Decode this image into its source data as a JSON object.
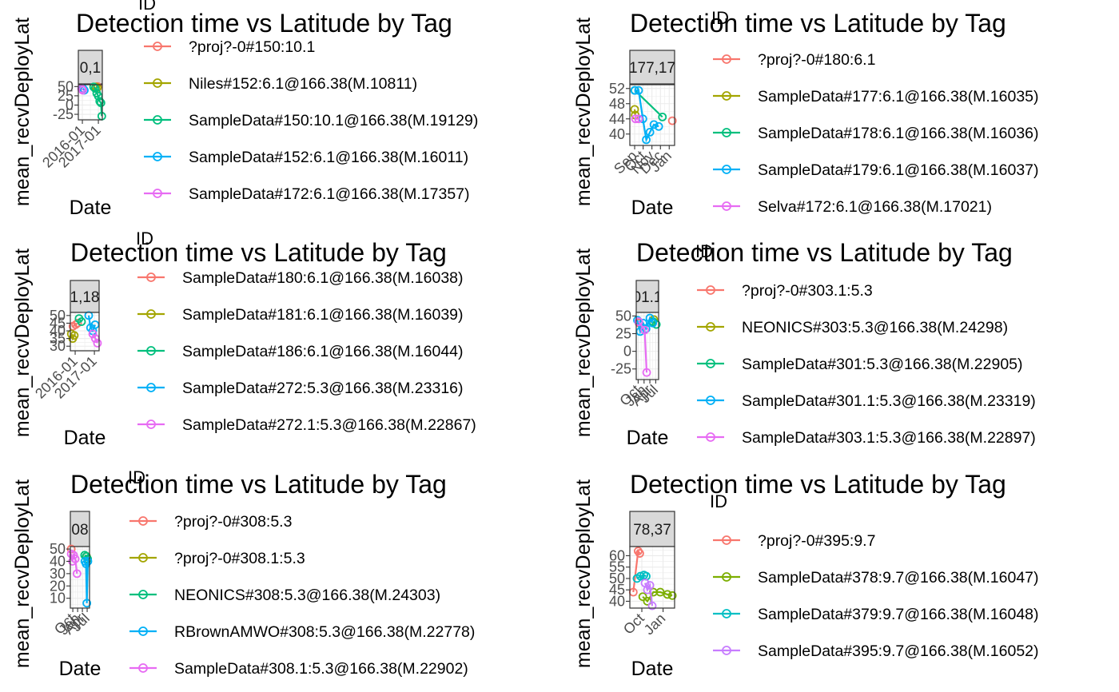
{
  "chart_data": [
    {
      "type": "line",
      "title": "Detection time vs Latitude by Tag",
      "xlabel": "Date",
      "ylabel": "mean_recvDeployLat",
      "legend_title": "ID",
      "legend_position": "right",
      "grid": true,
      "facet_strip": "0,1",
      "xlim": [
        "2015-10-01",
        "2017-04-01"
      ],
      "x_ticks": [
        "2016-01",
        "2017-01"
      ],
      "ylim": [
        -40,
        55
      ],
      "y_ticks": [
        -25,
        0,
        25,
        50
      ],
      "series": [
        {
          "name": "?proj?-0#150:10.1",
          "color": "#F8766D",
          "points": [
            [
              "2016-12-15",
              50
            ]
          ]
        },
        {
          "name": "Niles#152:6.1@166.38(M.10811)",
          "color": "#A3A500",
          "points": [
            [
              "2016-11-01",
              49
            ],
            [
              "2016-12-10",
              47
            ]
          ]
        },
        {
          "name": "SampleData#150:10.1@166.38(M.19129)",
          "color": "#00BF7D",
          "points": [
            [
              "2016-09-15",
              49
            ],
            [
              "2016-10-20",
              45
            ],
            [
              "2016-11-25",
              32
            ],
            [
              "2017-01-01",
              24
            ],
            [
              "2017-02-01",
              10
            ],
            [
              "2017-03-01",
              6
            ],
            [
              "2017-03-20",
              -30
            ]
          ]
        },
        {
          "name": "SampleData#152:6.1@166.38(M.16011)",
          "color": "#00B0F6",
          "points": [
            [
              "2016-01-15",
              45
            ],
            [
              "2016-02-15",
              40
            ]
          ]
        },
        {
          "name": "SampleData#172:6.1@166.38(M.17357)",
          "color": "#E76BF3",
          "points": [
            [
              "2015-12-15",
              44
            ],
            [
              "2016-01-10",
              40
            ]
          ]
        }
      ]
    },
    {
      "type": "line",
      "title": "Detection time vs Latitude by Tag",
      "xlabel": "Date",
      "ylabel": "mean_recvDeployLat",
      "legend_title": "ID",
      "legend_position": "right",
      "grid": true,
      "facet_strip": "177,17",
      "xlim": [
        "2016-08-15",
        "2017-01-20"
      ],
      "x_ticks": [
        "Sep",
        "Oct",
        "Nov",
        "Dec",
        "Jan"
      ],
      "ylim": [
        37,
        53
      ],
      "y_ticks": [
        40,
        44,
        48,
        52
      ],
      "series": [
        {
          "name": "?proj?-0#180:6.1",
          "color": "#F8766D",
          "points": [
            [
              "2017-01-12",
              43.5
            ]
          ]
        },
        {
          "name": "SampleData#177:6.1@166.38(M.16035)",
          "color": "#A3A500",
          "points": [
            [
              "2016-09-01",
              46.5
            ],
            [
              "2016-09-03",
              45
            ]
          ]
        },
        {
          "name": "SampleData#178:6.1@166.38(M.16036)",
          "color": "#00BF7D",
          "points": [
            [
              "2016-09-02",
              51.5
            ],
            [
              "2016-12-08",
              44.5
            ]
          ]
        },
        {
          "name": "SampleData#179:6.1@166.38(M.16037)",
          "color": "#00B0F6",
          "points": [
            [
              "2016-09-01",
              51.5
            ],
            [
              "2016-09-15",
              51.5
            ],
            [
              "2016-09-30",
              44
            ],
            [
              "2016-10-12",
              38.5
            ],
            [
              "2016-10-25",
              40.5
            ],
            [
              "2016-11-08",
              42.5
            ],
            [
              "2016-11-25",
              42
            ]
          ]
        },
        {
          "name": "Selva#172:6.1@166.38(M.17021)",
          "color": "#E76BF3",
          "points": [
            [
              "2016-09-04",
              44
            ],
            [
              "2016-09-15",
              44
            ]
          ]
        }
      ]
    },
    {
      "type": "line",
      "title": "Detection time vs Latitude by Tag",
      "xlabel": "Date",
      "ylabel": "mean_recvDeployLat",
      "legend_title": "ID",
      "legend_position": "right",
      "grid": true,
      "facet_strip": "1,18",
      "xlim": [
        "2015-10-01",
        "2017-04-01"
      ],
      "x_ticks": [
        "2016-01",
        "2017-01"
      ],
      "ylim": [
        27,
        52
      ],
      "y_ticks": [
        30,
        35,
        40,
        45,
        50
      ],
      "series": [
        {
          "name": "SampleData#180:6.1@166.38(M.16038)",
          "color": "#F8766D",
          "points": [
            [
              "2015-11-20",
              43
            ],
            [
              "2016-01-10",
              44
            ],
            [
              "2016-02-15",
              45
            ]
          ]
        },
        {
          "name": "SampleData#181:6.1@166.38(M.16039)",
          "color": "#A3A500",
          "points": [
            [
              "2015-10-20",
              38
            ],
            [
              "2015-11-15",
              35
            ],
            [
              "2015-12-15",
              37
            ]
          ]
        },
        {
          "name": "SampleData#186:6.1@166.38(M.16044)",
          "color": "#00BF7D",
          "points": [
            [
              "2016-03-15",
              48
            ],
            [
              "2016-05-01",
              46
            ]
          ]
        },
        {
          "name": "SampleData#272:5.3@166.38(M.23316)",
          "color": "#00B0F6",
          "points": [
            [
              "2016-09-15",
              50
            ],
            [
              "2016-10-20",
              42
            ],
            [
              "2016-12-01",
              40
            ],
            [
              "2017-01-15",
              44
            ]
          ]
        },
        {
          "name": "SampleData#272.1:5.3@166.38(M.22867)",
          "color": "#E76BF3",
          "points": [
            [
              "2016-12-01",
              38
            ],
            [
              "2017-01-20",
              35
            ],
            [
              "2017-03-01",
              32
            ]
          ]
        }
      ]
    },
    {
      "type": "line",
      "title": "Detection time vs Latitude by Tag",
      "xlabel": "Date",
      "ylabel": "mean_recvDeployLat",
      "legend_title": "ID",
      "legend_position": "right",
      "grid": true,
      "facet_strip": "01.1",
      "xlim": [
        "2016-09-01",
        "2017-08-15"
      ],
      "x_ticks": [
        "Oct",
        "Jan",
        "Apr",
        "Jul"
      ],
      "ylim": [
        -40,
        55
      ],
      "y_ticks": [
        -25,
        0,
        25,
        50
      ],
      "series": [
        {
          "name": "?proj?-0#303.1:5.3",
          "color": "#F8766D",
          "points": [
            [
              "2016-10-15",
              40
            ]
          ]
        },
        {
          "name": "NEONICS#303:5.3@166.38(M.24298)",
          "color": "#A3A500",
          "points": [
            [
              "2017-06-01",
              45
            ]
          ]
        },
        {
          "name": "SampleData#301:5.3@166.38(M.22905)",
          "color": "#00BF7D",
          "points": [
            [
              "2017-05-20",
              42
            ],
            [
              "2017-07-10",
              38
            ]
          ]
        },
        {
          "name": "SampleData#301.1:5.3@166.38(M.23319)",
          "color": "#00B0F6",
          "points": [
            [
              "2016-09-20",
              44
            ],
            [
              "2016-11-01",
              28
            ],
            [
              "2016-12-15",
              40
            ],
            [
              "2017-02-01",
              32
            ],
            [
              "2017-04-01",
              47
            ],
            [
              "2017-05-15",
              40
            ]
          ]
        },
        {
          "name": "SampleData#303.1:5.3@166.38(M.22897)",
          "color": "#E76BF3",
          "points": [
            [
              "2016-10-10",
              42
            ],
            [
              "2017-01-10",
              30
            ],
            [
              "2017-02-10",
              -30
            ]
          ]
        }
      ]
    },
    {
      "type": "line",
      "title": "Detection time vs Latitude by Tag",
      "xlabel": "Date",
      "ylabel": "mean_recvDeployLat",
      "legend_title": "ID",
      "legend_position": "right",
      "grid": true,
      "facet_strip": "08",
      "xlim": [
        "2016-08-15",
        "2017-08-15"
      ],
      "x_ticks": [
        "Oct",
        "Jan",
        "Apr",
        "Jul"
      ],
      "ylim": [
        2,
        52
      ],
      "y_ticks": [
        10,
        20,
        30,
        40,
        50
      ],
      "series": [
        {
          "name": "?proj?-0#308:5.3",
          "color": "#F8766D",
          "points": [
            [
              "2016-09-01",
              50
            ]
          ]
        },
        {
          "name": "?proj?-0#308.1:5.3",
          "color": "#A3A500",
          "points": [
            [
              "2017-06-20",
              44
            ]
          ]
        },
        {
          "name": "NEONICS#308:5.3@166.38(M.24303)",
          "color": "#00BF7D",
          "points": [
            [
              "2017-05-15",
              45
            ],
            [
              "2017-06-15",
              44
            ],
            [
              "2017-07-10",
              42
            ]
          ]
        },
        {
          "name": "RBrownAMWO#308:5.3@166.38(M.22778)",
          "color": "#00B0F6",
          "points": [
            [
              "2017-05-20",
              40
            ],
            [
              "2017-06-10",
              38
            ],
            [
              "2017-06-25",
              6
            ],
            [
              "2017-07-15",
              40
            ]
          ]
        },
        {
          "name": "SampleData#308.1:5.3@166.38(M.22902)",
          "color": "#E76BF3",
          "points": [
            [
              "2016-09-01",
              46
            ],
            [
              "2016-09-25",
              40
            ],
            [
              "2016-10-15",
              45
            ],
            [
              "2016-11-15",
              42
            ],
            [
              "2016-12-20",
              30
            ]
          ]
        }
      ]
    },
    {
      "type": "line",
      "title": "Detection time vs Latitude by Tag",
      "xlabel": "Date",
      "ylabel": "mean_recvDeployLat",
      "legend_title": "ID",
      "legend_position": "right",
      "grid": true,
      "facet_strip": "78,37",
      "xlim": [
        "2016-08-10",
        "2017-02-20"
      ],
      "x_ticks": [
        "Oct",
        "Jan"
      ],
      "ylim": [
        37,
        64
      ],
      "y_ticks": [
        40,
        45,
        50,
        55,
        60
      ],
      "series": [
        {
          "name": "?proj?-0#395:9.7",
          "color": "#F8766D",
          "points": [
            [
              "2016-08-25",
              44
            ],
            [
              "2016-09-15",
              62
            ],
            [
              "2016-09-22",
              61
            ]
          ]
        },
        {
          "name": "SampleData#378:9.7@166.38(M.16047)",
          "color": "#7CAE00",
          "points": [
            [
              "2016-10-05",
              42
            ],
            [
              "2016-10-25",
              40
            ],
            [
              "2016-11-20",
              44
            ],
            [
              "2016-12-20",
              44
            ],
            [
              "2017-01-20",
              43
            ],
            [
              "2017-02-10",
              42.5
            ]
          ]
        },
        {
          "name": "SampleData#379:9.7@166.38(M.16048)",
          "color": "#00BFC4",
          "points": [
            [
              "2016-09-10",
              50
            ],
            [
              "2016-09-25",
              51
            ],
            [
              "2016-10-10",
              51.5
            ],
            [
              "2016-10-20",
              51
            ]
          ]
        },
        {
          "name": "SampleData#395:9.7@166.38(M.16052)",
          "color": "#C77CFF",
          "points": [
            [
              "2016-10-15",
              48
            ],
            [
              "2016-10-25",
              45
            ],
            [
              "2016-11-05",
              47
            ],
            [
              "2016-11-15",
              38
            ]
          ]
        }
      ]
    }
  ]
}
